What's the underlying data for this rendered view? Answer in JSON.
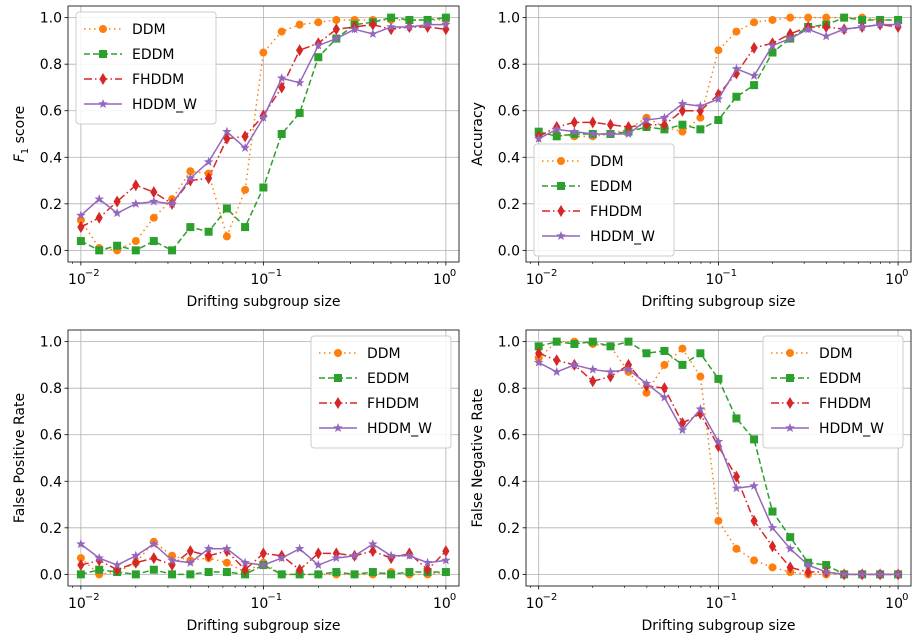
{
  "colors": {
    "DDM": "#ff7f0e",
    "EDDM": "#2ca02c",
    "FHDDM": "#d62728",
    "HDDM_W": "#9467bd"
  },
  "markers": {
    "DDM": "circle",
    "EDDM": "square",
    "FHDDM": "thin-diamond",
    "HDDM_W": "star"
  },
  "chart_data": [
    {
      "type": "line",
      "xscale": "log",
      "xlim": [
        0.0085,
        1.18
      ],
      "ylim": [
        -0.05,
        1.05
      ],
      "xticks": [
        0.01,
        0.1,
        1
      ],
      "xtick_labels": [
        "10",
        "10",
        "10"
      ],
      "xtick_exponents": [
        "−2",
        "−1",
        "0"
      ],
      "yticks": [
        0.0,
        0.2,
        0.4,
        0.6,
        0.8,
        1.0
      ],
      "ytick_labels": [
        "0.0",
        "0.2",
        "0.4",
        "0.6",
        "0.8",
        "1.0"
      ],
      "xlabel": "Drifting subgroup size",
      "ylabel": "F",
      "ylabel_sub": "1",
      "ylabel_rest": " score",
      "grid": true,
      "legend": "upper-left",
      "x": [
        0.01,
        0.0126,
        0.0158,
        0.02,
        0.0251,
        0.0316,
        0.0398,
        0.0501,
        0.0631,
        0.0794,
        0.1,
        0.126,
        0.158,
        0.2,
        0.251,
        0.316,
        0.398,
        0.501,
        0.631,
        0.794,
        1.0
      ],
      "series": [
        {
          "name": "DDM",
          "values": [
            0.13,
            0.01,
            0.0,
            0.04,
            0.14,
            0.22,
            0.34,
            0.33,
            0.06,
            0.26,
            0.85,
            0.94,
            0.97,
            0.98,
            0.99,
            0.99,
            0.99,
            0.99,
            0.99,
            0.99,
            0.99
          ]
        },
        {
          "name": "EDDM",
          "values": [
            0.04,
            0.0,
            0.02,
            0.0,
            0.04,
            0.0,
            0.1,
            0.08,
            0.18,
            0.1,
            0.27,
            0.5,
            0.59,
            0.83,
            0.91,
            0.97,
            0.98,
            1.0,
            0.99,
            0.99,
            1.0
          ]
        },
        {
          "name": "FHDDM",
          "values": [
            0.1,
            0.14,
            0.21,
            0.28,
            0.25,
            0.2,
            0.3,
            0.31,
            0.48,
            0.49,
            0.58,
            0.7,
            0.86,
            0.89,
            0.95,
            0.96,
            0.97,
            0.95,
            0.96,
            0.96,
            0.95
          ]
        },
        {
          "name": "HDDM_W",
          "values": [
            0.15,
            0.22,
            0.16,
            0.2,
            0.21,
            0.2,
            0.31,
            0.38,
            0.51,
            0.44,
            0.57,
            0.74,
            0.72,
            0.88,
            0.91,
            0.95,
            0.93,
            0.96,
            0.96,
            0.97,
            0.97
          ]
        }
      ]
    },
    {
      "type": "line",
      "xscale": "log",
      "xlim": [
        0.0085,
        1.18
      ],
      "ylim": [
        -0.05,
        1.05
      ],
      "xticks": [
        0.01,
        0.1,
        1
      ],
      "xtick_labels": [
        "10",
        "10",
        "10"
      ],
      "xtick_exponents": [
        "−2",
        "−1",
        "0"
      ],
      "yticks": [
        0.0,
        0.2,
        0.4,
        0.6,
        0.8,
        1.0
      ],
      "ytick_labels": [
        "0.0",
        "0.2",
        "0.4",
        "0.6",
        "0.8",
        "1.0"
      ],
      "xlabel": "Drifting subgroup size",
      "ylabel": "Accuracy",
      "grid": true,
      "legend": "lower-left",
      "x": [
        0.01,
        0.0126,
        0.0158,
        0.02,
        0.0251,
        0.0316,
        0.0398,
        0.0501,
        0.0631,
        0.0794,
        0.1,
        0.126,
        0.158,
        0.2,
        0.251,
        0.316,
        0.398,
        0.501,
        0.631,
        0.794,
        1.0
      ],
      "series": [
        {
          "name": "DDM",
          "values": [
            0.5,
            0.5,
            0.49,
            0.49,
            0.5,
            0.52,
            0.57,
            0.53,
            0.51,
            0.57,
            0.86,
            0.94,
            0.98,
            0.99,
            1.0,
            1.0,
            1.0,
            1.0,
            1.0,
            0.99,
            0.99
          ]
        },
        {
          "name": "EDDM",
          "values": [
            0.51,
            0.49,
            0.5,
            0.5,
            0.5,
            0.51,
            0.53,
            0.52,
            0.54,
            0.52,
            0.56,
            0.66,
            0.71,
            0.85,
            0.91,
            0.96,
            0.97,
            1.0,
            0.99,
            0.99,
            0.99
          ]
        },
        {
          "name": "FHDDM",
          "values": [
            0.49,
            0.53,
            0.55,
            0.55,
            0.54,
            0.53,
            0.54,
            0.54,
            0.6,
            0.6,
            0.67,
            0.76,
            0.87,
            0.89,
            0.93,
            0.96,
            0.96,
            0.95,
            0.96,
            0.97,
            0.96
          ]
        },
        {
          "name": "HDDM_W",
          "values": [
            0.48,
            0.52,
            0.51,
            0.5,
            0.5,
            0.5,
            0.56,
            0.57,
            0.63,
            0.62,
            0.65,
            0.78,
            0.75,
            0.88,
            0.91,
            0.95,
            0.92,
            0.95,
            0.96,
            0.97,
            0.97
          ]
        }
      ]
    },
    {
      "type": "line",
      "xscale": "log",
      "xlim": [
        0.0085,
        1.18
      ],
      "ylim": [
        -0.05,
        1.05
      ],
      "xticks": [
        0.01,
        0.1,
        1
      ],
      "xtick_labels": [
        "10",
        "10",
        "10"
      ],
      "xtick_exponents": [
        "−2",
        "−1",
        "0"
      ],
      "yticks": [
        0.0,
        0.2,
        0.4,
        0.6,
        0.8,
        1.0
      ],
      "ytick_labels": [
        "0.0",
        "0.2",
        "0.4",
        "0.6",
        "0.8",
        "1.0"
      ],
      "xlabel": "Drifting subgroup size",
      "ylabel": "False Positive Rate",
      "grid": true,
      "legend": "upper-right",
      "x": [
        0.01,
        0.0126,
        0.0158,
        0.02,
        0.0251,
        0.0316,
        0.0398,
        0.0501,
        0.0631,
        0.0794,
        0.1,
        0.126,
        0.158,
        0.2,
        0.251,
        0.316,
        0.398,
        0.501,
        0.631,
        0.794,
        1.0
      ],
      "series": [
        {
          "name": "DDM",
          "values": [
            0.07,
            0.0,
            0.01,
            0.05,
            0.14,
            0.08,
            0.06,
            0.07,
            0.05,
            0.01,
            0.05,
            0.0,
            0.0,
            0.0,
            0.0,
            0.0,
            0.0,
            0.01,
            0.0,
            0.0,
            0.01
          ]
        },
        {
          "name": "EDDM",
          "values": [
            0.0,
            0.02,
            0.01,
            0.0,
            0.02,
            0.0,
            0.0,
            0.01,
            0.01,
            0.0,
            0.04,
            0.0,
            0.0,
            0.0,
            0.01,
            0.0,
            0.01,
            0.0,
            0.01,
            0.01,
            0.01
          ]
        },
        {
          "name": "FHDDM",
          "values": [
            0.04,
            0.06,
            0.02,
            0.05,
            0.07,
            0.04,
            0.1,
            0.08,
            0.1,
            0.02,
            0.09,
            0.08,
            0.02,
            0.09,
            0.09,
            0.08,
            0.1,
            0.07,
            0.09,
            0.02,
            0.1
          ]
        },
        {
          "name": "HDDM_W",
          "values": [
            0.13,
            0.07,
            0.04,
            0.08,
            0.13,
            0.06,
            0.05,
            0.11,
            0.11,
            0.05,
            0.04,
            0.07,
            0.11,
            0.04,
            0.07,
            0.08,
            0.13,
            0.08,
            0.08,
            0.05,
            0.06
          ]
        }
      ]
    },
    {
      "type": "line",
      "xscale": "log",
      "xlim": [
        0.0085,
        1.18
      ],
      "ylim": [
        -0.05,
        1.05
      ],
      "xticks": [
        0.01,
        0.1,
        1
      ],
      "xtick_labels": [
        "10",
        "10",
        "10"
      ],
      "xtick_exponents": [
        "−2",
        "−1",
        "0"
      ],
      "yticks": [
        0.0,
        0.2,
        0.4,
        0.6,
        0.8,
        1.0
      ],
      "ytick_labels": [
        "0.0",
        "0.2",
        "0.4",
        "0.6",
        "0.8",
        "1.0"
      ],
      "xlabel": "Drifting subgroup size",
      "ylabel": "False Negative Rate",
      "grid": true,
      "legend": "upper-right",
      "x": [
        0.01,
        0.0126,
        0.0158,
        0.02,
        0.0251,
        0.0316,
        0.0398,
        0.0501,
        0.0631,
        0.0794,
        0.1,
        0.126,
        0.158,
        0.2,
        0.251,
        0.316,
        0.398,
        0.501,
        0.631,
        0.794,
        1.0
      ],
      "series": [
        {
          "name": "DDM",
          "values": [
            0.93,
            1.0,
            1.0,
            0.99,
            0.98,
            0.87,
            0.78,
            0.9,
            0.97,
            0.85,
            0.23,
            0.11,
            0.06,
            0.03,
            0.01,
            0.0,
            0.0,
            0.0,
            0.0,
            0.0,
            0.0
          ]
        },
        {
          "name": "EDDM",
          "values": [
            0.98,
            1.0,
            0.99,
            1.0,
            0.98,
            1.0,
            0.95,
            0.96,
            0.9,
            0.95,
            0.84,
            0.67,
            0.58,
            0.27,
            0.16,
            0.05,
            0.04,
            0.0,
            0.0,
            0.0,
            0.0
          ]
        },
        {
          "name": "FHDDM",
          "values": [
            0.95,
            0.92,
            0.9,
            0.83,
            0.85,
            0.9,
            0.81,
            0.8,
            0.65,
            0.69,
            0.55,
            0.42,
            0.23,
            0.12,
            0.03,
            0.01,
            0.01,
            0.0,
            0.0,
            0.0,
            0.0
          ]
        },
        {
          "name": "HDDM_W",
          "values": [
            0.91,
            0.87,
            0.9,
            0.88,
            0.87,
            0.88,
            0.82,
            0.76,
            0.62,
            0.71,
            0.57,
            0.37,
            0.38,
            0.2,
            0.11,
            0.04,
            0.01,
            0.0,
            0.0,
            0.0,
            0.0
          ]
        }
      ]
    }
  ]
}
